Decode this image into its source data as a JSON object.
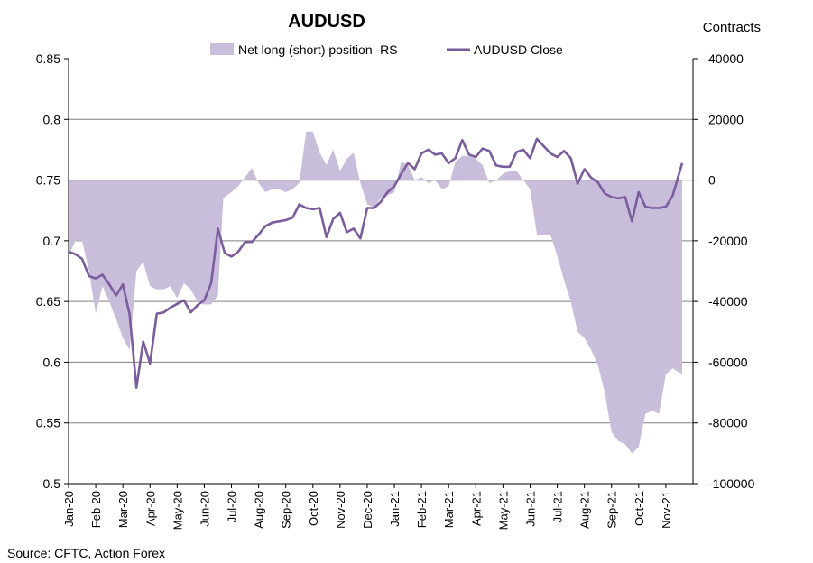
{
  "chart_data": {
    "type": "area+line",
    "title": "AUDUSD",
    "right_axis_label": "Contracts",
    "source": "Source: CFTC, Action Forex",
    "legend": {
      "area_label": "Net long (short) position -RS",
      "line_label": "AUDUSD Close",
      "placement": "top-center"
    },
    "colors": {
      "area": "#c8bedc",
      "line": "#7b5c9c",
      "grid": "#7f7f7f",
      "axis": "#000000"
    },
    "y_left": {
      "min": 0.5,
      "max": 0.85,
      "ticks": [
        "0.5",
        "0.55",
        "0.6",
        "0.65",
        "0.7",
        "0.75",
        "0.8",
        "0.85"
      ]
    },
    "y_right": {
      "min": -100000,
      "max": 40000,
      "ticks": [
        "-100000",
        "-80000",
        "-60000",
        "-40000",
        "-20000",
        "0",
        "20000",
        "40000"
      ]
    },
    "x_ticks": [
      "Jan-20",
      "Feb-20",
      "Mar-20",
      "Apr-20",
      "May-20",
      "Jun-20",
      "Jul-20",
      "Aug-20",
      "Sep-20",
      "Oct-20",
      "Nov-20",
      "Dec-20",
      "Jan-21",
      "Feb-21",
      "Mar-21",
      "Apr-21",
      "May-21",
      "Jun-21",
      "Jul-21",
      "Aug-21",
      "Sep-21",
      "Oct-21",
      "Nov-21"
    ],
    "x_range_months": [
      0,
      22.6
    ],
    "series": [
      {
        "name": "Net long (short) position -RS",
        "axis": "right",
        "type": "area",
        "points": [
          [
            0,
            -25000
          ],
          [
            0.25,
            -20000
          ],
          [
            0.5,
            -20000
          ],
          [
            0.75,
            -30000
          ],
          [
            1.0,
            -44000
          ],
          [
            1.25,
            -35000
          ],
          [
            1.5,
            -40000
          ],
          [
            1.75,
            -46000
          ],
          [
            2.0,
            -52000
          ],
          [
            2.25,
            -56000
          ],
          [
            2.5,
            -30000
          ],
          [
            2.75,
            -27000
          ],
          [
            3.0,
            -35000
          ],
          [
            3.25,
            -36000
          ],
          [
            3.5,
            -36000
          ],
          [
            3.75,
            -35000
          ],
          [
            4.0,
            -39000
          ],
          [
            4.25,
            -34000
          ],
          [
            4.5,
            -36000
          ],
          [
            4.75,
            -40000
          ],
          [
            5.0,
            -41000
          ],
          [
            5.25,
            -41000
          ],
          [
            5.5,
            -38000
          ],
          [
            5.7,
            -6000
          ],
          [
            6.0,
            -4000
          ],
          [
            6.25,
            -2000
          ],
          [
            6.5,
            1000
          ],
          [
            6.75,
            4000
          ],
          [
            7.0,
            -1000
          ],
          [
            7.25,
            -4000
          ],
          [
            7.5,
            -3000
          ],
          [
            7.75,
            -3000
          ],
          [
            8.0,
            -4000
          ],
          [
            8.25,
            -3000
          ],
          [
            8.5,
            -1000
          ],
          [
            8.75,
            16000
          ],
          [
            9.0,
            16000
          ],
          [
            9.25,
            9000
          ],
          [
            9.5,
            5000
          ],
          [
            9.75,
            10000
          ],
          [
            10.0,
            3000
          ],
          [
            10.25,
            7000
          ],
          [
            10.5,
            9000
          ],
          [
            10.75,
            -1000
          ],
          [
            11.0,
            -8000
          ],
          [
            11.25,
            -9000
          ],
          [
            11.5,
            -6000
          ],
          [
            11.75,
            -5000
          ],
          [
            12.0,
            -4000
          ],
          [
            12.25,
            6000
          ],
          [
            12.5,
            5000
          ],
          [
            12.75,
            0
          ],
          [
            13.0,
            1000
          ],
          [
            13.25,
            -1000
          ],
          [
            13.5,
            0
          ],
          [
            13.75,
            -3000
          ],
          [
            14.0,
            -2000
          ],
          [
            14.25,
            6000
          ],
          [
            14.5,
            8000
          ],
          [
            14.75,
            8000
          ],
          [
            15.0,
            7000
          ],
          [
            15.25,
            5000
          ],
          [
            15.5,
            -1000
          ],
          [
            15.75,
            0
          ],
          [
            16.0,
            2000
          ],
          [
            16.25,
            3000
          ],
          [
            16.5,
            3000
          ],
          [
            16.75,
            0
          ],
          [
            17.0,
            -3000
          ],
          [
            17.25,
            -18000
          ],
          [
            17.5,
            -18000
          ],
          [
            17.75,
            -18000
          ],
          [
            18.0,
            -25000
          ],
          [
            18.25,
            -33000
          ],
          [
            18.5,
            -40000
          ],
          [
            18.75,
            -50000
          ],
          [
            19.0,
            -52000
          ],
          [
            19.25,
            -56000
          ],
          [
            19.5,
            -61000
          ],
          [
            19.75,
            -70000
          ],
          [
            20.0,
            -83000
          ],
          [
            20.25,
            -86000
          ],
          [
            20.5,
            -87000
          ],
          [
            20.75,
            -90000
          ],
          [
            21.0,
            -88000
          ],
          [
            21.25,
            -77000
          ],
          [
            21.5,
            -76000
          ],
          [
            21.75,
            -77000
          ],
          [
            22.0,
            -64000
          ],
          [
            22.25,
            -62000
          ],
          [
            22.6,
            -64000
          ]
        ]
      },
      {
        "name": "AUDUSD Close",
        "axis": "left",
        "type": "line",
        "points": [
          [
            0,
            0.691
          ],
          [
            0.25,
            0.689
          ],
          [
            0.5,
            0.685
          ],
          [
            0.75,
            0.671
          ],
          [
            1.0,
            0.669
          ],
          [
            1.25,
            0.672
          ],
          [
            1.5,
            0.664
          ],
          [
            1.75,
            0.655
          ],
          [
            2.0,
            0.664
          ],
          [
            2.25,
            0.639
          ],
          [
            2.5,
            0.579
          ],
          [
            2.75,
            0.617
          ],
          [
            3.0,
            0.599
          ],
          [
            3.25,
            0.64
          ],
          [
            3.5,
            0.641
          ],
          [
            3.75,
            0.645
          ],
          [
            4.0,
            0.648
          ],
          [
            4.25,
            0.651
          ],
          [
            4.5,
            0.641
          ],
          [
            4.75,
            0.647
          ],
          [
            5.0,
            0.651
          ],
          [
            5.25,
            0.665
          ],
          [
            5.5,
            0.71
          ],
          [
            5.75,
            0.69
          ],
          [
            6.0,
            0.687
          ],
          [
            6.25,
            0.691
          ],
          [
            6.5,
            0.699
          ],
          [
            6.75,
            0.699
          ],
          [
            7.0,
            0.705
          ],
          [
            7.25,
            0.712
          ],
          [
            7.5,
            0.715
          ],
          [
            7.75,
            0.716
          ],
          [
            8.0,
            0.717
          ],
          [
            8.25,
            0.719
          ],
          [
            8.5,
            0.73
          ],
          [
            8.75,
            0.727
          ],
          [
            9.0,
            0.726
          ],
          [
            9.25,
            0.727
          ],
          [
            9.5,
            0.703
          ],
          [
            9.75,
            0.718
          ],
          [
            10.0,
            0.723
          ],
          [
            10.25,
            0.707
          ],
          [
            10.5,
            0.71
          ],
          [
            10.75,
            0.702
          ],
          [
            11.0,
            0.727
          ],
          [
            11.25,
            0.727
          ],
          [
            11.5,
            0.732
          ],
          [
            11.75,
            0.74
          ],
          [
            12.0,
            0.745
          ],
          [
            12.25,
            0.755
          ],
          [
            12.5,
            0.764
          ],
          [
            12.75,
            0.759
          ],
          [
            13.0,
            0.772
          ],
          [
            13.25,
            0.775
          ],
          [
            13.5,
            0.771
          ],
          [
            13.75,
            0.772
          ],
          [
            14.0,
            0.764
          ],
          [
            14.25,
            0.768
          ],
          [
            14.5,
            0.783
          ],
          [
            14.75,
            0.771
          ],
          [
            15.0,
            0.769
          ],
          [
            15.25,
            0.776
          ],
          [
            15.5,
            0.774
          ],
          [
            15.75,
            0.762
          ],
          [
            16.0,
            0.761
          ],
          [
            16.25,
            0.761
          ],
          [
            16.5,
            0.773
          ],
          [
            16.75,
            0.775
          ],
          [
            17.0,
            0.768
          ],
          [
            17.25,
            0.784
          ],
          [
            17.5,
            0.778
          ],
          [
            17.75,
            0.772
          ],
          [
            18.0,
            0.769
          ],
          [
            18.25,
            0.774
          ],
          [
            18.5,
            0.768
          ],
          [
            18.75,
            0.747
          ],
          [
            19.0,
            0.759
          ],
          [
            19.25,
            0.752
          ],
          [
            19.5,
            0.748
          ],
          [
            19.75,
            0.739
          ],
          [
            20.0,
            0.736
          ],
          [
            20.25,
            0.735
          ],
          [
            20.5,
            0.736
          ],
          [
            20.75,
            0.716
          ],
          [
            21.0,
            0.74
          ],
          [
            21.25,
            0.728
          ],
          [
            21.5,
            0.727
          ],
          [
            21.75,
            0.727
          ],
          [
            22.0,
            0.728
          ],
          [
            22.25,
            0.737
          ],
          [
            22.6,
            0.764
          ]
        ]
      }
    ]
  }
}
